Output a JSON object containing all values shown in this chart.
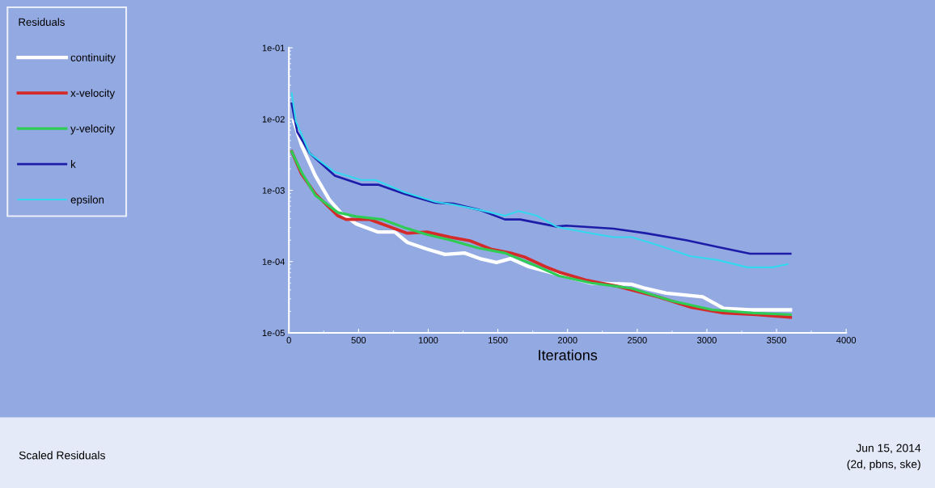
{
  "chart_data": {
    "type": "line",
    "xlabel": "Iterations",
    "legend_title": "Residuals",
    "legend": "top left",
    "grid": false,
    "log": "y",
    "marker": "none",
    "line_style": "solid",
    "xlim": [
      0,
      4000
    ],
    "xticks": [
      0,
      500,
      1000,
      1500,
      2000,
      2500,
      3000,
      3500,
      4000
    ],
    "ylim": [
      1e-05,
      0.1
    ],
    "yticks": [
      {
        "value": 1e-05,
        "label": "1e-05"
      },
      {
        "value": 0.0001,
        "label": "1e-04"
      },
      {
        "value": 0.001,
        "label": "1e-03"
      },
      {
        "value": 0.01,
        "label": "1e-02"
      },
      {
        "value": 0.1,
        "label": "1e-01"
      }
    ],
    "series": [
      {
        "name": "continuity",
        "color": "#ffffff",
        "x": [
          35,
          90,
          190,
          290,
          370,
          480,
          640,
          760,
          850,
          990,
          1120,
          1260,
          1370,
          1490,
          1590,
          1720,
          1940,
          2170,
          2460,
          2560,
          2710,
          2970,
          3120,
          3310,
          3600
        ],
        "values": [
          0.0093,
          0.0043,
          0.0016,
          0.00074,
          0.00049,
          0.00034,
          0.00026,
          0.00026,
          0.000186,
          0.00015,
          0.000126,
          0.000132,
          0.00011,
          9.7e-05,
          0.00011,
          8.5e-05,
          6.5e-05,
          5e-05,
          4.8e-05,
          4.2e-05,
          3.6e-05,
          3.2e-05,
          2.2e-05,
          2.1e-05,
          2.1e-05
        ]
      },
      {
        "name": "x-velocity",
        "color": "#d42a2a",
        "x": [
          20,
          90,
          190,
          350,
          410,
          580,
          720,
          850,
          990,
          1160,
          1300,
          1450,
          1590,
          1690,
          1840,
          1940,
          2130,
          2360,
          2650,
          2880,
          3120,
          3350,
          3600
        ],
        "values": [
          0.0035,
          0.0017,
          0.00089,
          0.00044,
          0.00039,
          0.00039,
          0.00031,
          0.00025,
          0.00026,
          0.00022,
          0.000196,
          0.00015,
          0.000132,
          0.000116,
          8.5e-05,
          7.1e-05,
          5.5e-05,
          4.5e-05,
          3.2e-05,
          2.3e-05,
          1.9e-05,
          1.8e-05,
          1.65e-05
        ]
      },
      {
        "name": "y-velocity",
        "color": "#2ecc55",
        "x": [
          20,
          90,
          190,
          350,
          480,
          670,
          830,
          990,
          1160,
          1360,
          1550,
          1740,
          1940,
          2170,
          2460,
          2750,
          3040,
          3330,
          3600
        ],
        "values": [
          0.0035,
          0.0018,
          0.00085,
          0.00049,
          0.00043,
          0.00039,
          0.0003,
          0.00024,
          0.0002,
          0.000155,
          0.000132,
          9.3e-05,
          6.3e-05,
          5e-05,
          4.2e-05,
          2.8e-05,
          2.1e-05,
          1.9e-05,
          1.8e-05
        ]
      },
      {
        "name": "k",
        "color": "#1c1ca8",
        "x": [
          20,
          60,
          150,
          330,
          520,
          640,
          830,
          1050,
          1180,
          1370,
          1550,
          1660,
          1920,
          1990,
          2330,
          2560,
          2850,
          3080,
          3310,
          3600
        ],
        "values": [
          0.0165,
          0.0066,
          0.0033,
          0.0016,
          0.0012,
          0.0012,
          0.00089,
          0.00067,
          0.00065,
          0.00053,
          0.00039,
          0.00039,
          0.00031,
          0.00032,
          0.00029,
          0.00025,
          0.0002,
          0.00016,
          0.000129,
          0.000129
        ]
      },
      {
        "name": "epsilon",
        "color": "#33d8ee",
        "x": [
          20,
          50,
          150,
          330,
          520,
          620,
          830,
          1050,
          1180,
          1370,
          1550,
          1650,
          1780,
          1920,
          1990,
          2170,
          2330,
          2460,
          2650,
          2880,
          3080,
          3290,
          3470,
          3580
        ],
        "values": [
          0.023,
          0.0093,
          0.0033,
          0.0018,
          0.0014,
          0.0014,
          0.00094,
          0.00069,
          0.00063,
          0.00053,
          0.00044,
          0.00051,
          0.00044,
          0.00031,
          0.00029,
          0.00025,
          0.00022,
          0.00022,
          0.00017,
          0.000119,
          0.000105,
          8.3e-05,
          8.3e-05,
          9.2e-05
        ]
      }
    ],
    "annotations": [
      "Scaled Residuals",
      "Jun 15, 2014",
      "(2d, pbns, ske)"
    ]
  }
}
